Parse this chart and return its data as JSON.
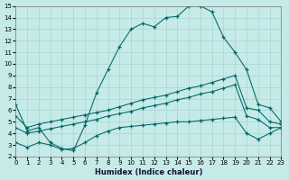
{
  "xlabel": "Humidex (Indice chaleur)",
  "bg_color": "#c5eae8",
  "line_color": "#006666",
  "grid_color": "#a8d5d2",
  "xlim": [
    0,
    23
  ],
  "ylim": [
    2,
    15
  ],
  "xticks": [
    0,
    1,
    2,
    3,
    4,
    5,
    6,
    7,
    8,
    9,
    10,
    11,
    12,
    13,
    14,
    15,
    16,
    17,
    18,
    19,
    20,
    21,
    22,
    23
  ],
  "yticks": [
    2,
    3,
    4,
    5,
    6,
    7,
    8,
    9,
    10,
    11,
    12,
    13,
    14,
    15
  ],
  "line_main_x": [
    0,
    1,
    2,
    3,
    4,
    5,
    6,
    7,
    8,
    9,
    10,
    11,
    12,
    13,
    14,
    15,
    16,
    17,
    18,
    19,
    20,
    21,
    22,
    23
  ],
  "line_main_y": [
    6.5,
    4.2,
    4.5,
    3.2,
    2.7,
    2.5,
    4.7,
    7.5,
    9.5,
    11.5,
    13.0,
    13.5,
    13.2,
    14.0,
    14.1,
    15.0,
    15.0,
    14.5,
    12.3,
    11.0,
    9.5,
    6.5,
    6.2,
    5.0
  ],
  "line_a_x": [
    0,
    1,
    2,
    3,
    4,
    5,
    6,
    7,
    8,
    9,
    10,
    11,
    12,
    13,
    14,
    15,
    16,
    17,
    18,
    19,
    20,
    21,
    22,
    23
  ],
  "line_a_y": [
    5.5,
    4.5,
    4.8,
    5.0,
    5.2,
    5.4,
    5.6,
    5.8,
    6.0,
    6.3,
    6.6,
    6.9,
    7.1,
    7.3,
    7.6,
    7.9,
    8.1,
    8.4,
    8.7,
    9.0,
    6.2,
    6.0,
    5.0,
    4.8
  ],
  "line_b_x": [
    0,
    1,
    2,
    3,
    4,
    5,
    6,
    7,
    8,
    9,
    10,
    11,
    12,
    13,
    14,
    15,
    16,
    17,
    18,
    19,
    20,
    21,
    22,
    23
  ],
  "line_b_y": [
    4.5,
    4.0,
    4.2,
    4.4,
    4.6,
    4.8,
    5.0,
    5.2,
    5.5,
    5.7,
    5.9,
    6.2,
    6.4,
    6.6,
    6.9,
    7.1,
    7.4,
    7.6,
    7.9,
    8.2,
    5.5,
    5.2,
    4.5,
    4.5
  ],
  "line_c_x": [
    0,
    1,
    2,
    3,
    4,
    5,
    6,
    7,
    8,
    9,
    10,
    11,
    12,
    13,
    14,
    15,
    16,
    17,
    18,
    19,
    20,
    21,
    22,
    23
  ],
  "line_c_y": [
    3.2,
    2.8,
    3.2,
    3.0,
    2.6,
    2.7,
    3.2,
    3.8,
    4.2,
    4.5,
    4.6,
    4.7,
    4.8,
    4.9,
    5.0,
    5.0,
    5.1,
    5.2,
    5.3,
    5.4,
    4.0,
    3.5,
    4.0,
    4.5
  ]
}
